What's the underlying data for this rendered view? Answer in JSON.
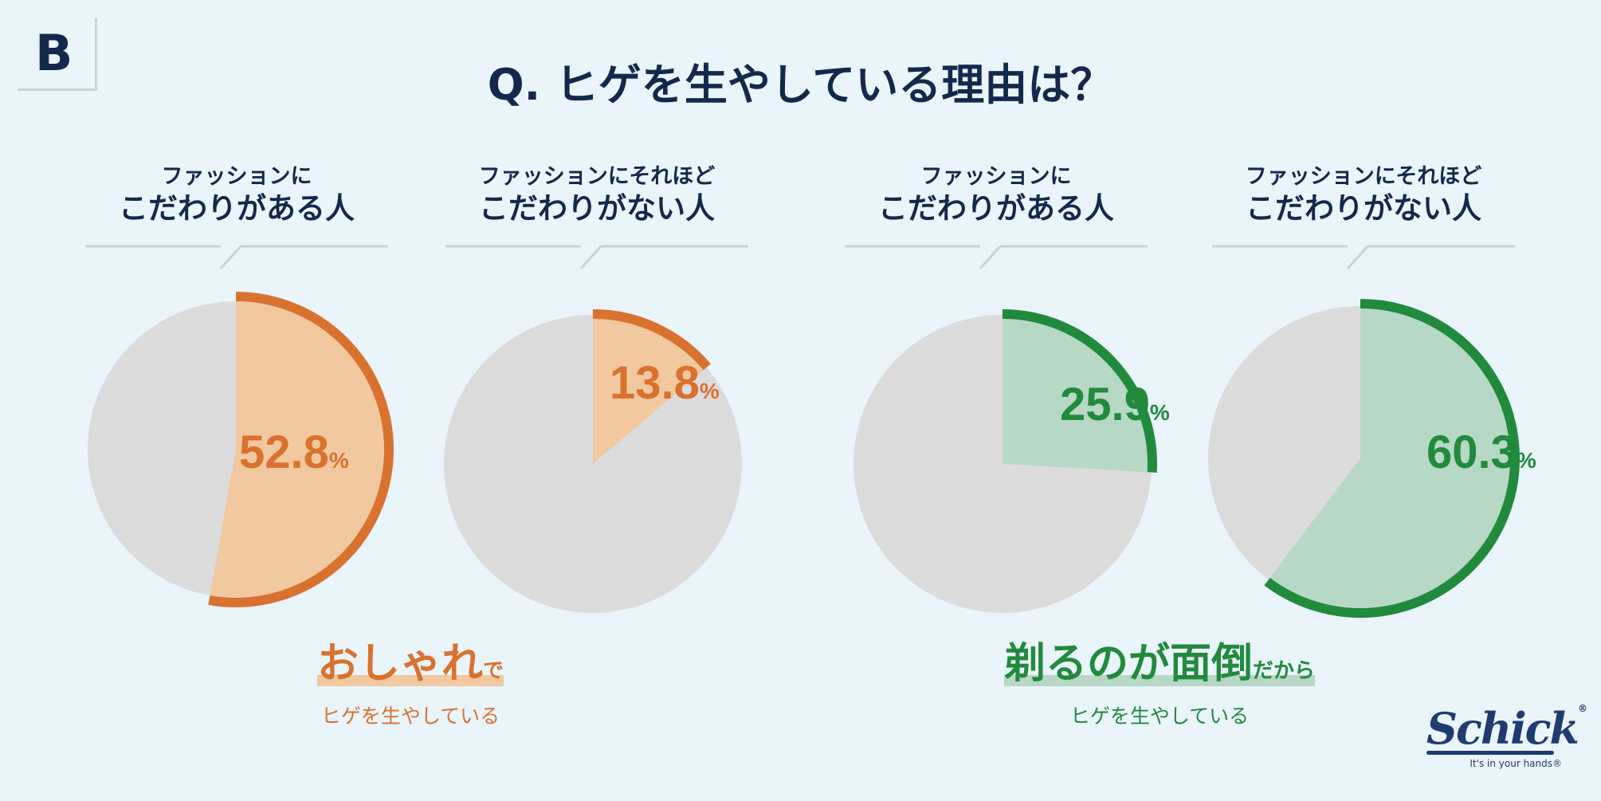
{
  "badge": "B",
  "title": "Q. ヒゲを生やしている理由は？",
  "colors": {
    "orange": "#d9722f",
    "orange_fill": "#f1c89f",
    "green": "#218a3c",
    "green_fill": "#b6d8c5",
    "remainder": "#dcdcdc",
    "navy": "#13294b"
  },
  "groups": [
    {
      "line1": "ファッションに",
      "line2": "こだわりがある人"
    },
    {
      "line1": "ファッションにそれほど",
      "line2": "こだわりがない人"
    },
    {
      "line1": "ファッションに",
      "line2": "こだわりがある人"
    },
    {
      "line1": "ファッションにそれほど",
      "line2": "こだわりがない人"
    }
  ],
  "chart_data": [
    {
      "type": "pie",
      "title": "おしゃれでヒゲを生やしている",
      "series": [
        {
          "values": [
            52.8,
            13.8
          ],
          "labels": [
            "52.8",
            "13.8"
          ],
          "unit": "%"
        }
      ],
      "categories": [
        "ファッションにこだわりがある人",
        "ファッションにそれほどこだわりがない人"
      ]
    },
    {
      "type": "pie",
      "title": "剃るのが面倒だからヒゲを生やしている",
      "series": [
        {
          "values": [
            25.9,
            60.3
          ],
          "labels": [
            "25.9",
            "60.3"
          ],
          "unit": "%"
        }
      ],
      "categories": [
        "ファッションにこだわりがある人",
        "ファッションにそれほどこだわりがない人"
      ]
    }
  ],
  "captions": [
    {
      "big": "おしゃれ",
      "small": "で",
      "sub": "ヒゲを生やしている"
    },
    {
      "big": "剃るのが面倒",
      "small": "だから",
      "sub": "ヒゲを生やしている"
    }
  ],
  "logo": {
    "name": "Schick",
    "reg": "®",
    "tagline": "It's in your hands®"
  }
}
